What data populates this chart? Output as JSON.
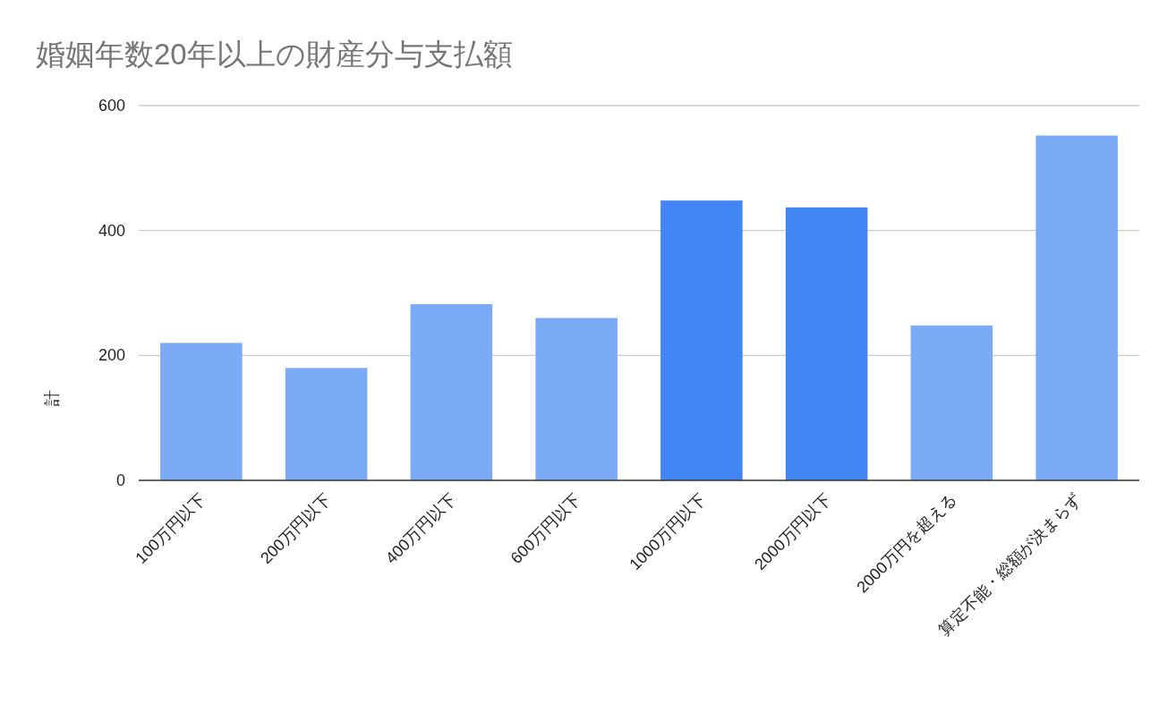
{
  "chart_data": {
    "type": "bar",
    "title": "婚姻年数20年以上の財産分与支払額",
    "ylabel": "計",
    "categories": [
      "100万円以下",
      "200万円以下",
      "400万円以下",
      "600万円以下",
      "1000万円以下",
      "2000万円以下",
      "2000万円を超える",
      "算定不能・総額が決まらず"
    ],
    "values": [
      220,
      180,
      282,
      260,
      448,
      437,
      248,
      552
    ],
    "colors": [
      "#7baaf7",
      "#7baaf7",
      "#7baaf7",
      "#7baaf7",
      "#4285f4",
      "#4285f4",
      "#7baaf7",
      "#7baaf7"
    ],
    "ylim": [
      0,
      600
    ],
    "yticks": [
      0,
      200,
      400,
      600
    ],
    "grid": "y"
  }
}
